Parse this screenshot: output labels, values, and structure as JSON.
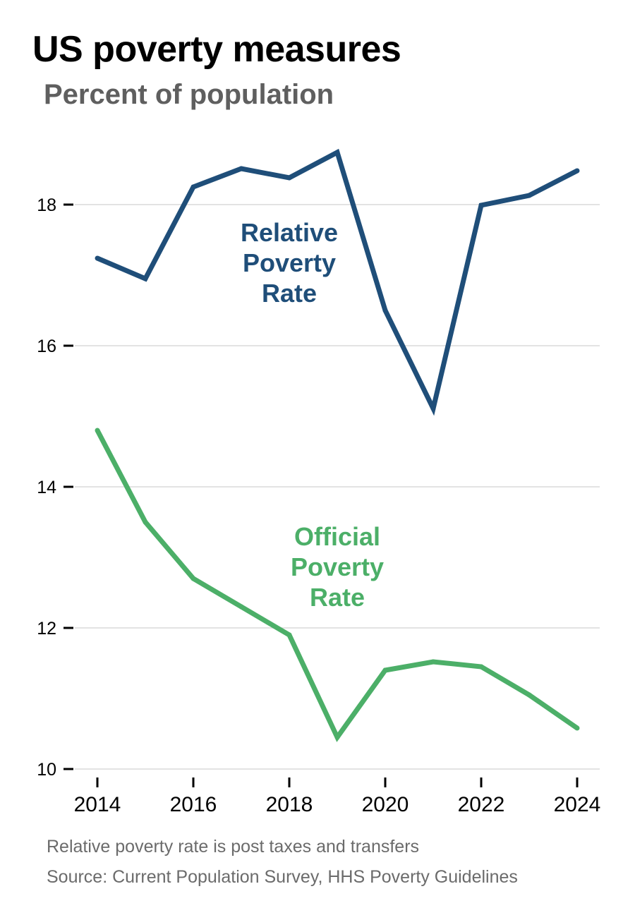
{
  "header": {
    "title": "US poverty measures",
    "subtitle": "Percent of population"
  },
  "footer": {
    "note": "Relative poverty rate is post taxes and transfers",
    "source": "Source: Current Population Survey, HHS Poverty Guidelines"
  },
  "chart_data": {
    "type": "line",
    "title": "US poverty measures",
    "subtitle": "Percent of population",
    "xlabel": "",
    "ylabel": "",
    "x": [
      2014,
      2015,
      2016,
      2017,
      2018,
      2019,
      2020,
      2021,
      2022,
      2023,
      2024
    ],
    "x_ticks": [
      "2014",
      "2016",
      "2018",
      "2020",
      "2022",
      "2024"
    ],
    "y_ticks": [
      "10",
      "12",
      "14",
      "16",
      "18"
    ],
    "xlim": [
      2014,
      2024
    ],
    "ylim": [
      10,
      18.9
    ],
    "grid": "horizontal",
    "series": [
      {
        "name": "Relative Poverty Rate",
        "label_lines": [
          "Relative",
          "Poverty",
          "Rate"
        ],
        "color": "#1f4e79",
        "values": [
          17.24,
          16.95,
          18.25,
          18.51,
          18.38,
          18.74,
          16.5,
          15.11,
          17.99,
          18.13,
          18.48
        ]
      },
      {
        "name": "Official Poverty Rate",
        "label_lines": [
          "Official",
          "Poverty",
          "Rate"
        ],
        "color": "#4caf68",
        "values": [
          14.8,
          13.5,
          12.7,
          12.3,
          11.9,
          10.45,
          11.4,
          11.52,
          11.45,
          11.05,
          10.58
        ]
      }
    ]
  }
}
